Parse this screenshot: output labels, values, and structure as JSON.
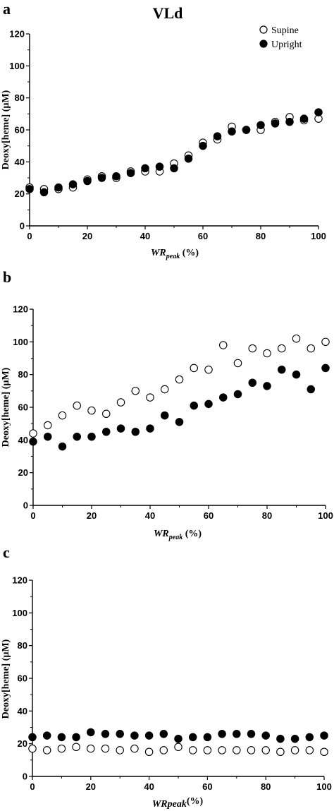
{
  "chart_data": [
    {
      "panel": "a",
      "type": "scatter",
      "title": "VLd",
      "xlabel_main": "WR",
      "xlabel_sub": "peak",
      "xlabel_suffix": " (%)",
      "ylabel": "Deoxy[heme] (µM)",
      "xlim": [
        0,
        100
      ],
      "ylim": [
        0,
        120
      ],
      "xticks": [
        0,
        20,
        40,
        60,
        80,
        100
      ],
      "yticks": [
        0,
        20,
        40,
        60,
        80,
        100,
        120
      ],
      "legend": {
        "placement": "top-right",
        "entries": [
          "Supine",
          "Upright"
        ]
      },
      "series": [
        {
          "name": "Supine",
          "marker": "open-circle",
          "x": [
            0,
            5,
            10,
            15,
            20,
            25,
            30,
            35,
            40,
            45,
            50,
            55,
            60,
            65,
            70,
            75,
            80,
            85,
            90,
            95,
            100
          ],
          "y": [
            24,
            23,
            23,
            24,
            29,
            31,
            30,
            34,
            34,
            34,
            39,
            44,
            52,
            54,
            62,
            60,
            60,
            65,
            68,
            66,
            67
          ]
        },
        {
          "name": "Upright",
          "marker": "filled-circle",
          "x": [
            0,
            5,
            10,
            15,
            20,
            25,
            30,
            35,
            40,
            45,
            50,
            55,
            60,
            65,
            70,
            75,
            80,
            85,
            90,
            95,
            100
          ],
          "y": [
            23,
            21,
            24,
            26,
            28,
            30,
            31,
            33,
            36,
            37,
            36,
            42,
            50,
            56,
            59,
            60,
            63,
            64,
            65,
            67,
            71
          ]
        }
      ]
    },
    {
      "panel": "b",
      "type": "scatter",
      "title": "",
      "xlabel_main": "WR",
      "xlabel_sub": "peak",
      "xlabel_suffix": " (%)",
      "ylabel": "Deoxy[heme] (µM)",
      "xlim": [
        0,
        100
      ],
      "ylim": [
        0,
        120
      ],
      "xticks": [
        0,
        20,
        40,
        60,
        80,
        100
      ],
      "yticks": [
        0,
        20,
        40,
        60,
        80,
        100,
        120
      ],
      "series": [
        {
          "marker": "open-circle",
          "x": [
            0,
            5,
            10,
            15,
            20,
            25,
            30,
            35,
            40,
            45,
            50,
            55,
            60,
            65,
            70,
            75,
            80,
            85,
            90,
            95,
            100
          ],
          "y": [
            44,
            49,
            55,
            61,
            58,
            56,
            63,
            70,
            66,
            71,
            77,
            84,
            83,
            98,
            87,
            96,
            93,
            96,
            102,
            96,
            100
          ]
        },
        {
          "marker": "filled-circle",
          "x": [
            0,
            5,
            10,
            15,
            20,
            25,
            30,
            35,
            40,
            45,
            50,
            55,
            60,
            65,
            70,
            75,
            80,
            85,
            90,
            95,
            100
          ],
          "y": [
            39,
            42,
            36,
            42,
            42,
            45,
            47,
            45,
            47,
            55,
            51,
            61,
            62,
            66,
            68,
            75,
            73,
            83,
            80,
            71,
            84
          ]
        }
      ]
    },
    {
      "panel": "c",
      "type": "scatter",
      "title": "",
      "xlabel_main": "WRpeak",
      "xlabel_sub": "",
      "xlabel_suffix": "(%)",
      "ylabel": "Deoxy[heme] (µM)",
      "xlim": [
        0,
        100
      ],
      "ylim": [
        0,
        120
      ],
      "xticks": [
        0,
        20,
        40,
        60,
        80,
        100
      ],
      "yticks": [
        0,
        20,
        40,
        60,
        80,
        100,
        120
      ],
      "series": [
        {
          "marker": "open-circle",
          "x": [
            0,
            5,
            10,
            15,
            20,
            25,
            30,
            35,
            40,
            45,
            50,
            55,
            60,
            65,
            70,
            75,
            80,
            85,
            90,
            95,
            100
          ],
          "y": [
            17,
            16,
            17,
            18,
            17,
            17,
            16,
            17,
            15,
            16,
            18,
            16,
            16,
            16,
            16,
            16,
            16,
            15,
            16,
            16,
            15
          ]
        },
        {
          "marker": "filled-circle",
          "x": [
            0,
            5,
            10,
            15,
            20,
            25,
            30,
            35,
            40,
            45,
            50,
            55,
            60,
            65,
            70,
            75,
            80,
            85,
            90,
            95,
            100
          ],
          "y": [
            24,
            25,
            24,
            24,
            27,
            26,
            26,
            25,
            25,
            26,
            23,
            24,
            24,
            26,
            26,
            26,
            25,
            23,
            23,
            24,
            25
          ]
        }
      ]
    }
  ]
}
